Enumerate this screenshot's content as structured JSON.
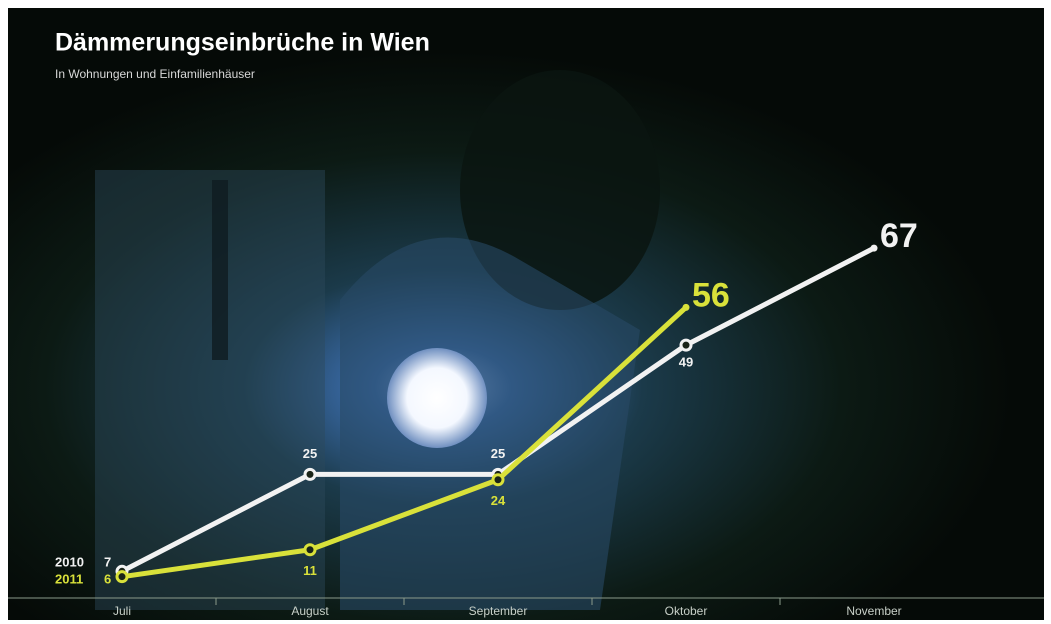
{
  "chart_data": {
    "type": "line",
    "title": "Dämmerungseinbrüche in Wien",
    "subtitle": "In Wohnungen und Einfamilienhäuser",
    "categories": [
      "Juli",
      "August",
      "September",
      "Oktober",
      "November"
    ],
    "series": [
      {
        "name": "2010",
        "color": "#f2f2f2",
        "values": [
          7,
          25,
          25,
          49,
          67
        ]
      },
      {
        "name": "2011",
        "color": "#d9e13a",
        "values": [
          6,
          11,
          24,
          56,
          null
        ]
      }
    ],
    "ylim": [
      0,
      70
    ]
  }
}
